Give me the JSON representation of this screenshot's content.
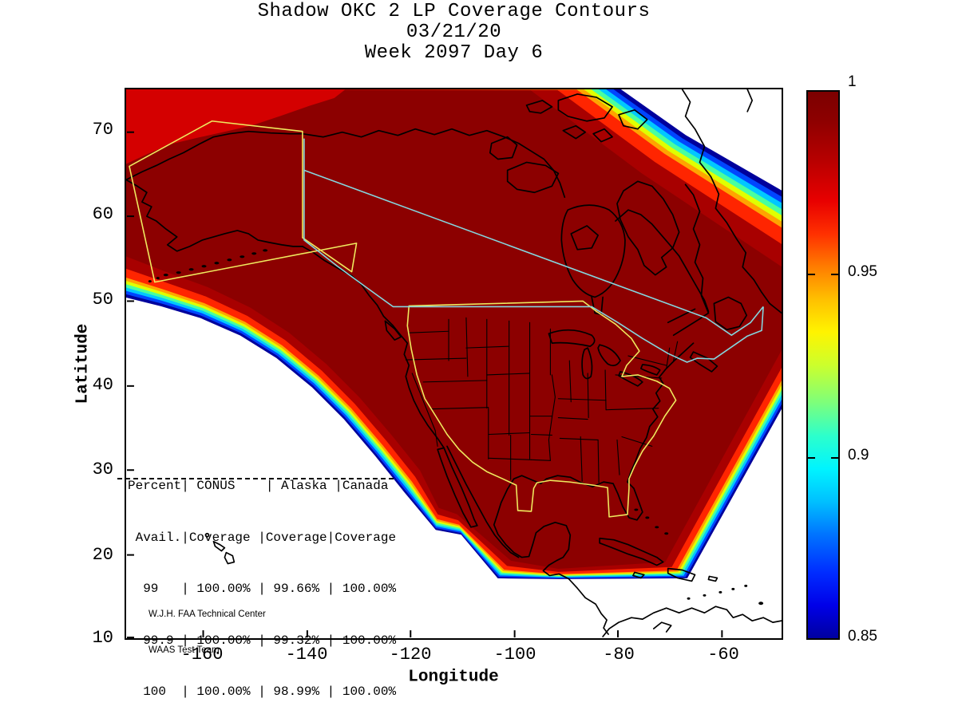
{
  "title": {
    "line1": "Shadow OKC 2 LP Coverage Contours",
    "line2": "03/21/20",
    "line3": "Week 2097 Day 6"
  },
  "axes": {
    "x_label": "Longitude",
    "y_label": "Latitude",
    "x_ticks": [
      "-160",
      "-140",
      "-120",
      "-100",
      "-80",
      "-60"
    ],
    "y_ticks": [
      "70",
      "60",
      "50",
      "40",
      "30",
      "20",
      "10"
    ]
  },
  "colorbar": {
    "tick_labels": [
      "1",
      "0.95",
      "0.9",
      "0.85"
    ]
  },
  "coverage_table": {
    "header_line1": "Percent| CONUS    | Alaska |Canada",
    "header_line2": " Avail.|Coverage |Coverage|Coverage",
    "rows": [
      "  99   | 100.00% | 99.66% | 100.00%",
      "  99.9 | 100.00% | 99.32% | 100.00%",
      "  100  | 100.00% | 98.99% | 100.00%"
    ]
  },
  "attribution": {
    "line1": "W.J.H. FAA Technical Center",
    "line2": "WAAS Test Team"
  },
  "chart_data": {
    "type": "heatmap",
    "subtype": "filled-contour-coverage-map",
    "title": "Shadow OKC 2 LP Coverage Contours",
    "date": "03/21/20",
    "gps_week": 2097,
    "gps_day": 6,
    "xlabel": "Longitude",
    "ylabel": "Latitude",
    "xlim": [
      -175,
      -48
    ],
    "ylim": [
      10,
      75
    ],
    "x_ticks": [
      -160,
      -140,
      -120,
      -100,
      -80,
      -60
    ],
    "y_ticks": [
      70,
      60,
      50,
      40,
      30,
      20,
      10
    ],
    "grid": false,
    "colorbar": {
      "position": "right",
      "min": 0.85,
      "max": 1.0,
      "tick_values": [
        1,
        0.95,
        0.9,
        0.85
      ],
      "colormap": "jet"
    },
    "coverage_stats": {
      "columns": [
        "Percent Avail.",
        "CONUS Coverage",
        "Alaska Coverage",
        "Canada Coverage"
      ],
      "rows": [
        [
          "99",
          "100.00%",
          "99.66%",
          "100.00%"
        ],
        [
          "99.9",
          "100.00%",
          "99.32%",
          "100.00%"
        ],
        [
          "100",
          "100.00%",
          "98.99%",
          "100.00%"
        ]
      ]
    },
    "regions": [
      {
        "name": "CONUS",
        "boundary_color": "#efe95e"
      },
      {
        "name": "Alaska",
        "boundary_color": "#efe95e"
      },
      {
        "name": "Canada",
        "boundary_color": "#85d6de"
      }
    ],
    "contour_band_colors": [
      "#00009c",
      "#0045ff",
      "#00c8ff",
      "#49ff9f",
      "#e0ff00",
      "#ffa400",
      "#ff2500",
      "#a80000",
      "#8c0000"
    ],
    "top_left_band_color": "#d40000",
    "coastline_color": "#000000",
    "background": "#ffffff"
  }
}
